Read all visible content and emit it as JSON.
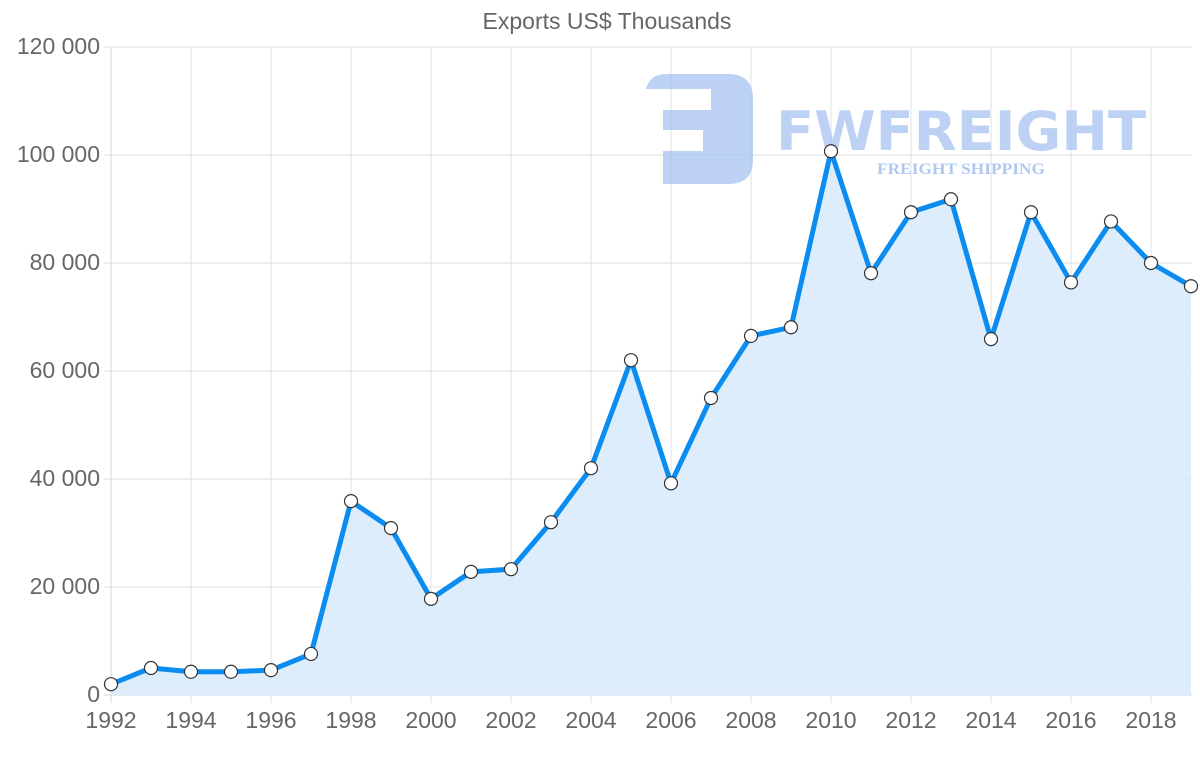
{
  "chart_data": {
    "type": "area",
    "title": "Exports US$ Thousands",
    "xlabel": "",
    "ylabel": "",
    "x": [
      1992,
      1993,
      1994,
      1995,
      1996,
      1997,
      1998,
      1999,
      2000,
      2001,
      2002,
      2003,
      2004,
      2005,
      2006,
      2007,
      2008,
      2009,
      2010,
      2011,
      2012,
      2013,
      2014,
      2015,
      2016,
      2017,
      2018,
      2019
    ],
    "series": [
      {
        "name": "Exports US$ Thousands",
        "values": [
          2000,
          5000,
          4300,
          4300,
          4600,
          7600,
          35900,
          30900,
          17800,
          22800,
          23300,
          32000,
          42000,
          62000,
          39200,
          55000,
          66500,
          68100,
          100700,
          78100,
          89400,
          91800,
          65900,
          89400,
          76400,
          87700,
          80000,
          75700
        ]
      }
    ],
    "ylim": [
      0,
      120000
    ],
    "yticks": [
      "0",
      "20 000",
      "40 000",
      "60 000",
      "80 000",
      "100 000",
      "120 000"
    ],
    "xticks": [
      "1992",
      "1994",
      "1996",
      "1998",
      "2000",
      "2002",
      "2004",
      "2006",
      "2008",
      "2010",
      "2012",
      "2014",
      "2016",
      "2018"
    ],
    "grid": true,
    "legend": "none",
    "colors": {
      "line": "#0b8cf0",
      "fill": "#d9ebfc",
      "point_fill": "#ffffff",
      "point_stroke": "#333333",
      "grid": "#e2e2e2",
      "text": "#666666"
    }
  },
  "watermark": {
    "brand": "FWFREIGHT",
    "tagline": "FREIGHT SHIPPING",
    "color": "#a8c3f0"
  }
}
